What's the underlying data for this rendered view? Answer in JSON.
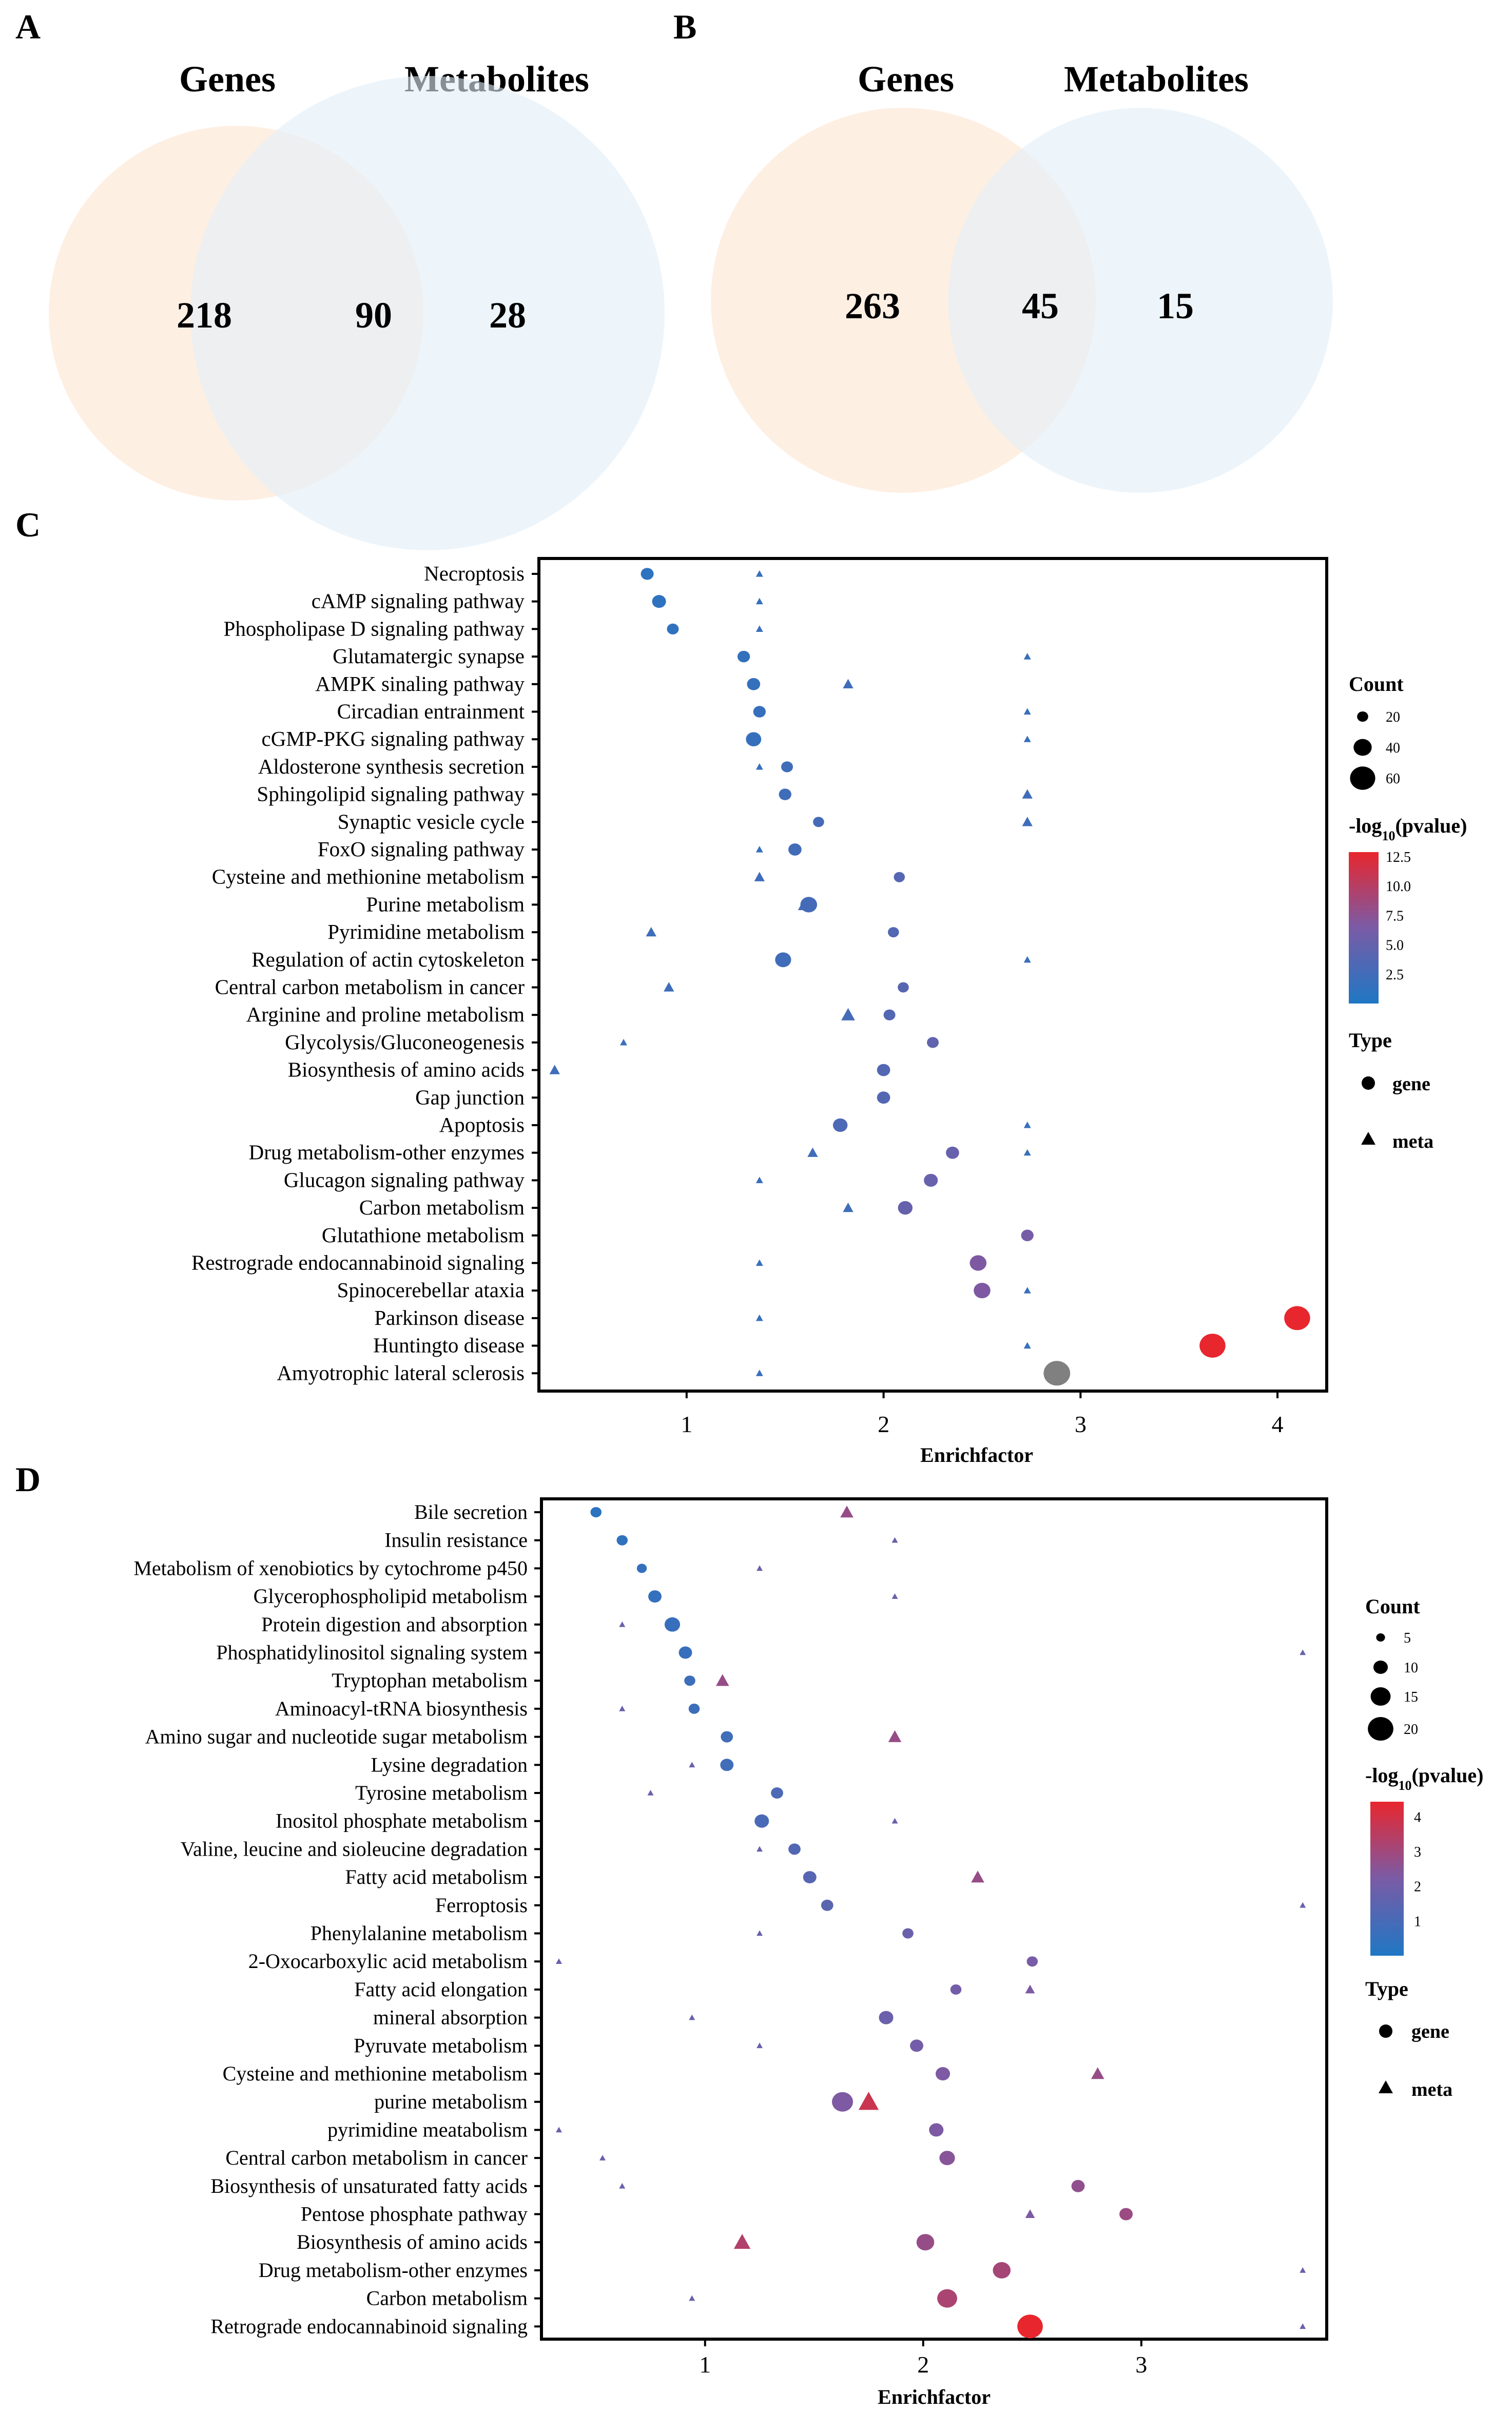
{
  "colors": {
    "genes_circle": "#fde9da",
    "metabolites_circle": "#e1eef9",
    "low": "#1f77c4",
    "mid": "#7a5ba6",
    "high": "#e8262e",
    "na": "#808080"
  },
  "panels": {
    "A": {
      "letter": "A",
      "left_label": "Genes",
      "right_label": "Metabolites",
      "left_only": "218",
      "overlap": "90",
      "right_only": "28"
    },
    "B": {
      "letter": "B",
      "left_label": "Genes",
      "right_label": "Metabolites",
      "left_only": "263",
      "overlap": "45",
      "right_only": "15"
    },
    "C": {
      "letter": "C"
    },
    "D": {
      "letter": "D"
    }
  },
  "chart_data": [
    {
      "panel": "C",
      "type": "scatter",
      "xlabel": "Enrichfactor",
      "xlim": [
        0.25,
        4.25
      ],
      "xticks": [
        "1",
        "2",
        "3",
        "4"
      ],
      "xtick_values": [
        1,
        2,
        3,
        4
      ],
      "color_scale_max": 12.5,
      "categories": [
        "Necroptosis",
        "cAMP signaling pathway",
        "Phospholipase D signaling pathway",
        "Glutamatergic synapse",
        "AMPK sinaling pathway",
        "Circadian entrainment",
        "cGMP-PKG signaling pathway",
        "Aldosterone synthesis secretion",
        "Sphingolipid signaling pathway",
        "Synaptic vesicle cycle",
        "FoxO signaling pathway",
        "Cysteine and methionine metabolism",
        "Purine metabolism",
        "Pyrimidine metabolism",
        "Regulation of actin cytoskeleton",
        "Central carbon metabolism in cancer",
        "Arginine and proline metabolism",
        "Glycolysis/Gluconeogenesis",
        "Biosynthesis of amino acids",
        "Gap junction",
        "Apoptosis",
        "Drug metabolism-other enzymes",
        "Glucagon signaling pathway",
        "Carbon metabolism",
        "Glutathione metabolism",
        "Restrograde endocannabinoid signaling",
        "Spinocerebellar ataxia",
        "Parkinson disease",
        "Huntingto disease",
        "Amyotrophic lateral sclerosis"
      ],
      "gene_points": [
        {
          "x": 0.8,
          "count": 25,
          "p": 1.0
        },
        {
          "x": 0.86,
          "count": 28,
          "p": 1.1
        },
        {
          "x": 0.93,
          "count": 22,
          "p": 1.2
        },
        {
          "x": 1.29,
          "count": 24,
          "p": 1.4
        },
        {
          "x": 1.34,
          "count": 26,
          "p": 1.5
        },
        {
          "x": 1.37,
          "count": 24,
          "p": 1.6
        },
        {
          "x": 1.34,
          "count": 32,
          "p": 1.6
        },
        {
          "x": 1.51,
          "count": 22,
          "p": 2.2
        },
        {
          "x": 1.5,
          "count": 24,
          "p": 2.2
        },
        {
          "x": 1.67,
          "count": 20,
          "p": 2.6
        },
        {
          "x": 1.55,
          "count": 26,
          "p": 2.4
        },
        {
          "x": 2.08,
          "count": 20,
          "p": 3.8
        },
        {
          "x": 1.62,
          "count": 36,
          "p": 2.6
        },
        {
          "x": 2.05,
          "count": 20,
          "p": 3.6
        },
        {
          "x": 1.49,
          "count": 34,
          "p": 2.3
        },
        {
          "x": 2.1,
          "count": 20,
          "p": 3.9
        },
        {
          "x": 2.03,
          "count": 22,
          "p": 3.6
        },
        {
          "x": 2.25,
          "count": 22,
          "p": 4.5
        },
        {
          "x": 2.0,
          "count": 26,
          "p": 3.6
        },
        {
          "x": 2.0,
          "count": 26,
          "p": 3.6
        },
        {
          "x": 1.78,
          "count": 30,
          "p": 3.2
        },
        {
          "x": 2.35,
          "count": 26,
          "p": 5.0
        },
        {
          "x": 2.24,
          "count": 28,
          "p": 5.0
        },
        {
          "x": 2.11,
          "count": 30,
          "p": 4.8
        },
        {
          "x": 2.73,
          "count": 24,
          "p": 6.0
        },
        {
          "x": 2.48,
          "count": 36,
          "p": 6.5
        },
        {
          "x": 2.5,
          "count": 36,
          "p": 6.5
        },
        {
          "x": 4.1,
          "count": 62,
          "p": 12.5
        },
        {
          "x": 3.67,
          "count": 62,
          "p": 12.5
        },
        {
          "x": 2.88,
          "count": 64,
          "p": null
        }
      ],
      "meta_points": [
        {
          "x": 1.37,
          "size": 1
        },
        {
          "x": 1.37,
          "size": 1
        },
        {
          "x": 1.37,
          "size": 1
        },
        {
          "x": 2.73,
          "size": 1
        },
        {
          "x": 1.82,
          "size": 2
        },
        {
          "x": 2.73,
          "size": 1
        },
        {
          "x": 2.73,
          "size": 1
        },
        {
          "x": 1.37,
          "size": 1
        },
        {
          "x": 2.73,
          "size": 2
        },
        {
          "x": 2.73,
          "size": 2
        },
        {
          "x": 1.37,
          "size": 1
        },
        {
          "x": 1.37,
          "size": 2
        },
        {
          "x": 1.6,
          "size": 3
        },
        {
          "x": 0.82,
          "size": 2
        },
        {
          "x": 2.73,
          "size": 1
        },
        {
          "x": 0.91,
          "size": 2
        },
        {
          "x": 1.82,
          "size": 3
        },
        {
          "x": 0.68,
          "size": 1
        },
        {
          "x": 0.33,
          "size": 2
        },
        {
          "x": 2.73,
          "size": 1
        },
        {
          "x": 2.73,
          "size": 1
        },
        {
          "x": 1.64,
          "size": 2
        },
        {
          "x": 1.37,
          "size": 1
        },
        {
          "x": 1.82,
          "size": 2
        },
        {
          "x": 1.37,
          "size": 1
        },
        {
          "x": 2.73,
          "size": 1
        },
        {
          "x": 1.37,
          "size": 1
        },
        {
          "x": 2.73,
          "size": 1
        },
        {
          "x": 1.37,
          "size": 1
        }
      ],
      "meta_rows": [
        0,
        1,
        2,
        3,
        4,
        5,
        6,
        7,
        8,
        9,
        10,
        11,
        12,
        13,
        14,
        15,
        16,
        17,
        18,
        20,
        21,
        21,
        22,
        23,
        25,
        26,
        27,
        28,
        29
      ],
      "legend": {
        "count_title": "Count",
        "count_labels": [
          "20",
          "40",
          "60"
        ],
        "count_values": [
          20,
          40,
          60
        ],
        "p_title_prefix": "-log",
        "p_title_sub": "10",
        "p_title_suffix": "(pvalue)",
        "p_labels": [
          "12.5",
          "10.0",
          "7.5",
          "5.0",
          "2.5"
        ],
        "p_values": [
          12.5,
          10.0,
          7.5,
          5.0,
          2.5
        ],
        "type_title": "Type",
        "type_gene": "gene",
        "type_meta": "meta"
      }
    },
    {
      "panel": "D",
      "type": "scatter",
      "xlabel": "Enrichfactor",
      "xlim": [
        0.25,
        3.85
      ],
      "xticks": [
        "1",
        "2",
        "3"
      ],
      "xtick_values": [
        1,
        2,
        3
      ],
      "color_scale_max": 4.3,
      "categories": [
        "Bile secretion",
        "Insulin resistance",
        "Metabolism of xenobiotics by cytochrome p450",
        "Glycerophospholipid metabolism",
        "Protein digestion and absorption",
        "Phosphatidylinositol signaling system",
        "Tryptophan metabolism",
        "Aminoacyl-tRNA biosynthesis",
        "Amino sugar and nucleotide sugar metabolism",
        "Lysine degradation",
        "Tyrosine metabolism",
        "Inositol phosphate metabolism",
        "Valine, leucine and sioleucine degradation",
        "Fatty acid metabolism",
        "Ferroptosis",
        "Phenylalanine metabolism",
        "2-Oxocarboxylic acid metabolism",
        "Fatty acid elongation",
        "mineral absorption",
        "Pyruvate metabolism",
        "Cysteine and methionine metabolism",
        "purine metabolism",
        "pyrimidine meatabolism",
        "Central carbon metabolism in cancer",
        "Biosynthesis of unsaturated fatty acids",
        "Pentose phosphate pathway",
        "Biosynthesis of amino acids",
        "Drug metabolism-other enzymes",
        "Carbon metabolism",
        "Retrograde endocannabinoid signaling"
      ],
      "gene_points": [
        {
          "x": 0.5,
          "count": 7,
          "p": 0.3
        },
        {
          "x": 0.62,
          "count": 7,
          "p": 0.4
        },
        {
          "x": 0.71,
          "count": 6,
          "p": 0.5
        },
        {
          "x": 0.77,
          "count": 9,
          "p": 0.5
        },
        {
          "x": 0.85,
          "count": 11,
          "p": 0.6
        },
        {
          "x": 0.91,
          "count": 9,
          "p": 0.6
        },
        {
          "x": 0.93,
          "count": 7,
          "p": 0.7
        },
        {
          "x": 0.95,
          "count": 7,
          "p": 0.7
        },
        {
          "x": 1.1,
          "count": 8,
          "p": 0.8
        },
        {
          "x": 1.1,
          "count": 9,
          "p": 0.8
        },
        {
          "x": 1.33,
          "count": 8,
          "p": 1.1
        },
        {
          "x": 1.26,
          "count": 10,
          "p": 1.0
        },
        {
          "x": 1.41,
          "count": 8,
          "p": 1.2
        },
        {
          "x": 1.48,
          "count": 9,
          "p": 1.3
        },
        {
          "x": 1.56,
          "count": 8,
          "p": 1.4
        },
        {
          "x": 1.93,
          "count": 7,
          "p": 1.8
        },
        {
          "x": 2.5,
          "count": 7,
          "p": 2.1
        },
        {
          "x": 2.15,
          "count": 7,
          "p": 2.0
        },
        {
          "x": 1.83,
          "count": 10,
          "p": 1.8
        },
        {
          "x": 1.97,
          "count": 9,
          "p": 2.0
        },
        {
          "x": 2.09,
          "count": 10,
          "p": 2.2
        },
        {
          "x": 1.63,
          "count": 16,
          "p": 2.2
        },
        {
          "x": 2.06,
          "count": 10,
          "p": 2.2
        },
        {
          "x": 2.11,
          "count": 11,
          "p": 2.4
        },
        {
          "x": 2.71,
          "count": 9,
          "p": 2.6
        },
        {
          "x": 2.93,
          "count": 9,
          "p": 2.8
        },
        {
          "x": 2.01,
          "count": 13,
          "p": 2.7
        },
        {
          "x": 2.36,
          "count": 13,
          "p": 3.0
        },
        {
          "x": 2.11,
          "count": 15,
          "p": 3.1
        },
        {
          "x": 2.49,
          "count": 20,
          "p": 4.3
        }
      ],
      "meta_points": [
        {
          "x": 1.65,
          "size": 3
        },
        {
          "x": 1.87,
          "size": 1
        },
        {
          "x": 1.25,
          "size": 1
        },
        {
          "x": 1.87,
          "size": 1
        },
        {
          "x": 0.62,
          "size": 1
        },
        {
          "x": 3.74,
          "size": 1
        },
        {
          "x": 1.08,
          "size": 3
        },
        {
          "x": 0.62,
          "size": 1
        },
        {
          "x": 1.87,
          "size": 3
        },
        {
          "x": 0.94,
          "size": 1
        },
        {
          "x": 0.75,
          "size": 1
        },
        {
          "x": 1.87,
          "size": 1
        },
        {
          "x": 1.25,
          "size": 1
        },
        {
          "x": 2.25,
          "size": 3
        },
        {
          "x": 3.74,
          "size": 1
        },
        {
          "x": 1.25,
          "size": 1
        },
        {
          "x": 0.33,
          "size": 1
        },
        {
          "x": 2.49,
          "size": 1
        },
        {
          "x": 2.49,
          "size": 2
        },
        {
          "x": 0.94,
          "size": 1
        },
        {
          "x": 1.25,
          "size": 1
        },
        {
          "x": 2.8,
          "size": 3
        },
        {
          "x": 1.75,
          "size": 5
        },
        {
          "x": 0.33,
          "size": 1
        },
        {
          "x": 0.53,
          "size": 1
        },
        {
          "x": 0.62,
          "size": 1
        },
        {
          "x": 2.49,
          "size": 2
        },
        {
          "x": 1.17,
          "size": 4
        },
        {
          "x": 3.74,
          "size": 1
        },
        {
          "x": 0.94,
          "size": 1
        },
        {
          "x": 3.74,
          "size": 1
        }
      ],
      "meta_rows": [
        0,
        1,
        2,
        3,
        4,
        5,
        6,
        7,
        8,
        9,
        10,
        11,
        12,
        13,
        14,
        15,
        16,
        16,
        17,
        18,
        19,
        20,
        21,
        22,
        23,
        24,
        25,
        26,
        27,
        28,
        29
      ],
      "legend": {
        "count_title": "Count",
        "count_labels": [
          "5",
          "10",
          "15",
          "20"
        ],
        "count_values": [
          5,
          10,
          15,
          20
        ],
        "p_title_prefix": "-log",
        "p_title_sub": "10",
        "p_title_suffix": "(pvalue)",
        "p_labels": [
          "4",
          "3",
          "2",
          "1"
        ],
        "p_values": [
          4,
          3,
          2,
          1
        ],
        "type_title": "Type",
        "type_gene": "gene",
        "type_meta": "meta"
      }
    }
  ]
}
